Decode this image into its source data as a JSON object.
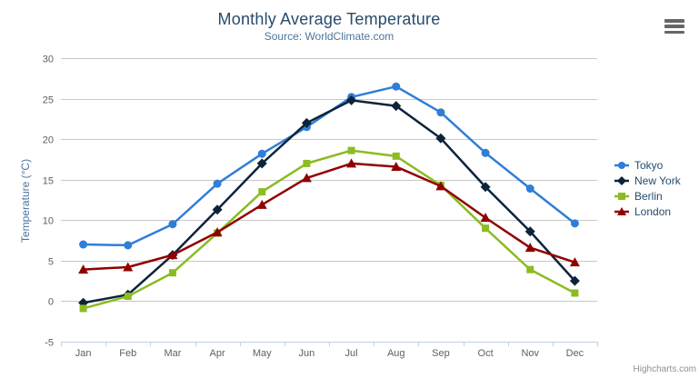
{
  "chart_data": {
    "type": "line",
    "title": "Monthly Average Temperature",
    "subtitle": "Source: WorldClimate.com",
    "xlabel": "",
    "ylabel": "Temperature (°C)",
    "categories": [
      "Jan",
      "Feb",
      "Mar",
      "Apr",
      "May",
      "Jun",
      "Jul",
      "Aug",
      "Sep",
      "Oct",
      "Nov",
      "Dec"
    ],
    "ylim": [
      -5,
      30
    ],
    "ytick_interval": 5,
    "grid": true,
    "legend_position": "right",
    "series": [
      {
        "name": "Tokyo",
        "color": "#2f7ed8",
        "marker": "circle",
        "values": [
          7.0,
          6.9,
          9.5,
          14.5,
          18.2,
          21.5,
          25.2,
          26.5,
          23.3,
          18.3,
          13.9,
          9.6
        ]
      },
      {
        "name": "New York",
        "color": "#0d233a",
        "marker": "diamond",
        "values": [
          -0.2,
          0.8,
          5.7,
          11.3,
          17.0,
          22.0,
          24.8,
          24.1,
          20.1,
          14.1,
          8.6,
          2.5
        ]
      },
      {
        "name": "Berlin",
        "color": "#8bbc21",
        "marker": "square",
        "values": [
          -0.9,
          0.6,
          3.5,
          8.4,
          13.5,
          17.0,
          18.6,
          17.9,
          14.3,
          9.0,
          3.9,
          1.0
        ]
      },
      {
        "name": "London",
        "color": "#910000",
        "marker": "triangle",
        "values": [
          3.9,
          4.2,
          5.7,
          8.5,
          11.9,
          15.2,
          17.0,
          16.6,
          14.2,
          10.3,
          6.6,
          4.8
        ]
      }
    ],
    "credits": "Highcharts.com"
  },
  "colors": {
    "title": "#274b6d",
    "subtitle": "#4d759e",
    "axis_title": "#4d759e",
    "axis_labels": "#606060",
    "gridline": "#c8c8c8",
    "axis_line": "#c0d0e0",
    "tick": "#c0d0e0",
    "legend_text": "#274b6d",
    "credits_text": "#909090",
    "menu_icon": "#666666",
    "background": "#ffffff"
  }
}
